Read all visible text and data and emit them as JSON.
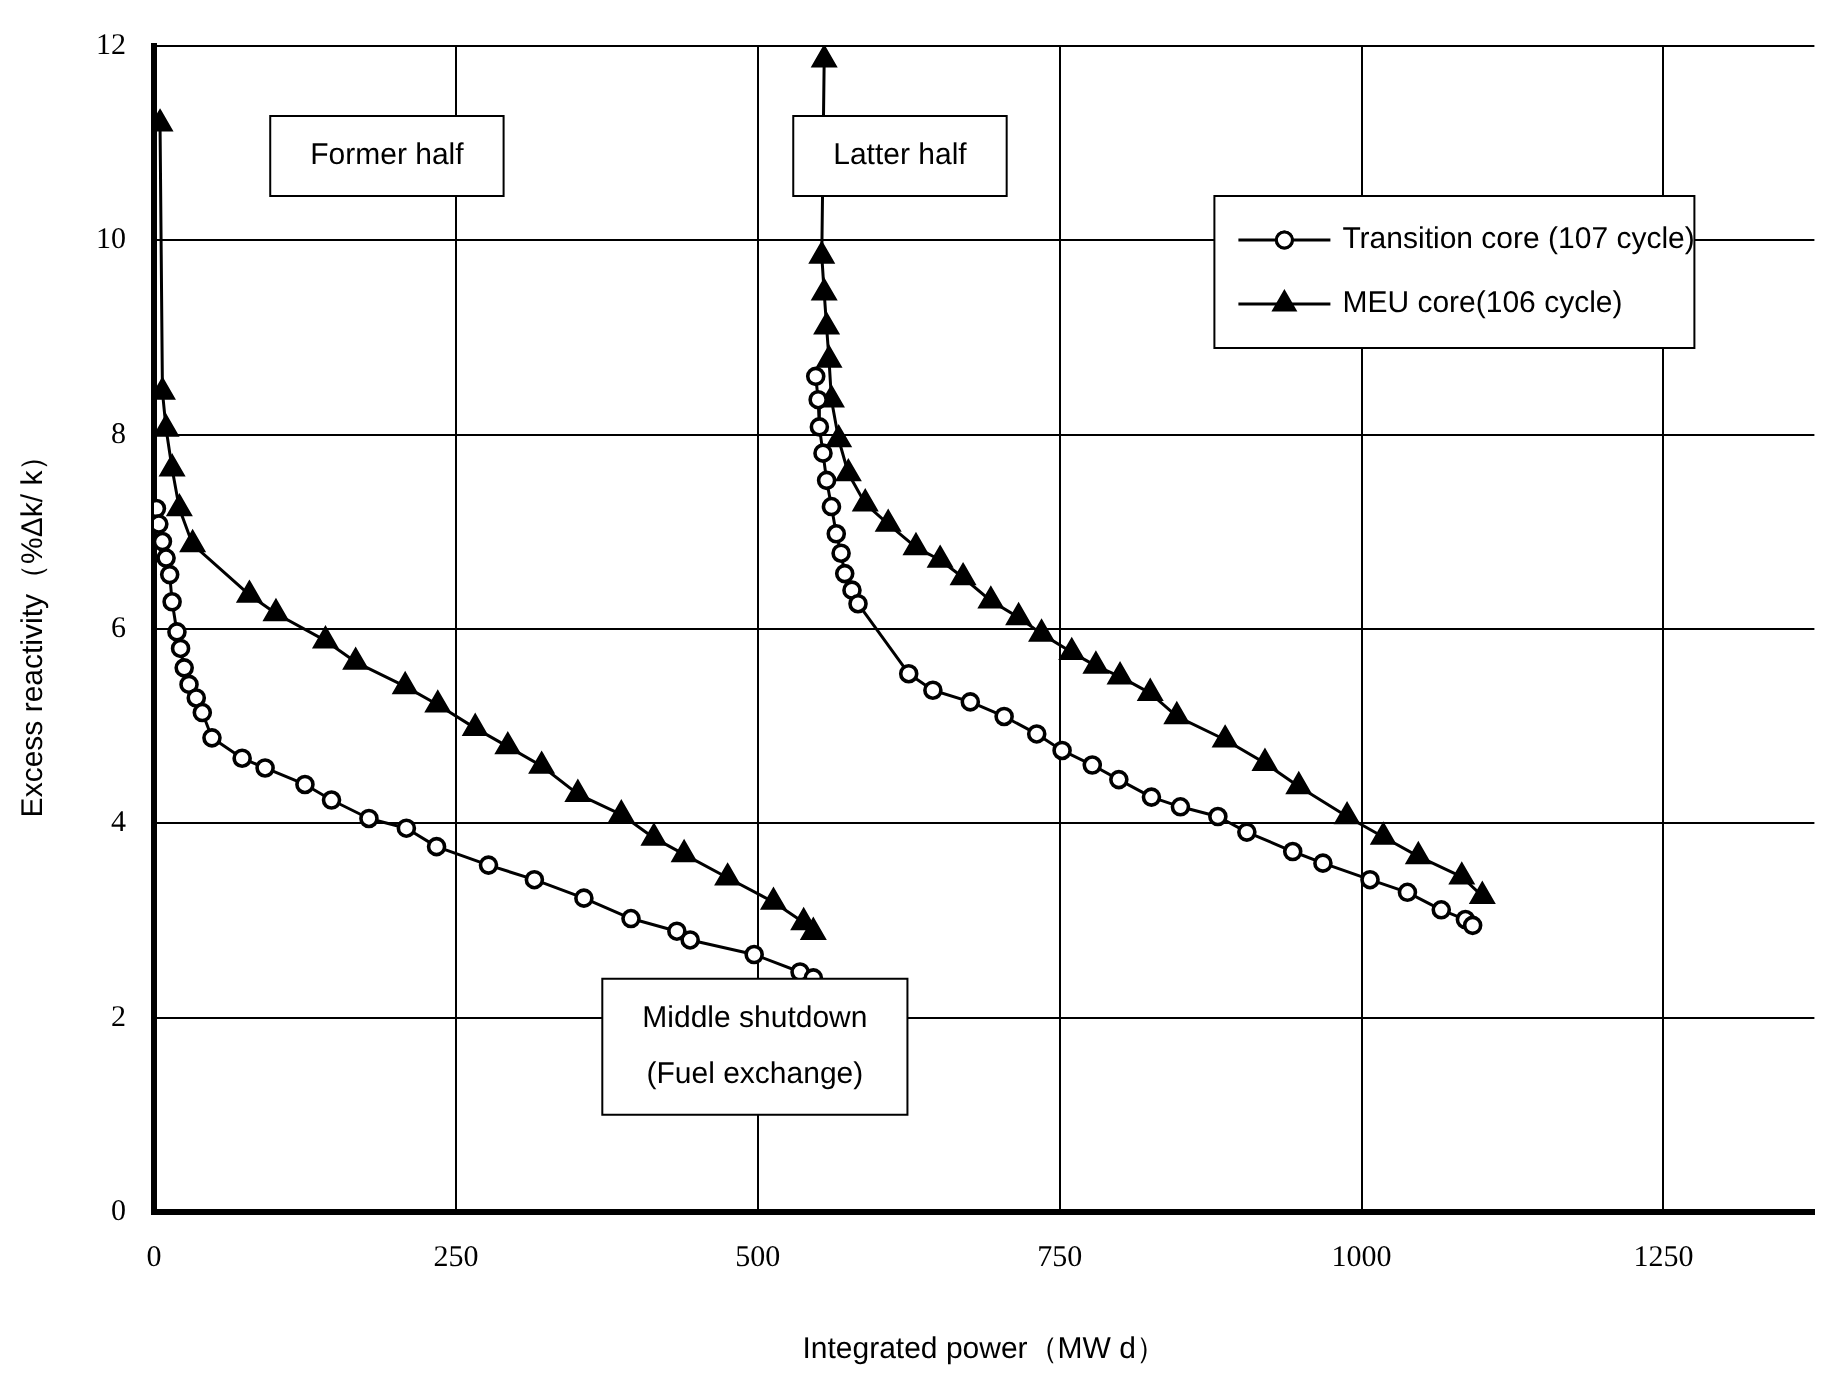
{
  "chart_data": {
    "type": "line",
    "xlabel": "Integrated power（MW d）",
    "ylabel": "Excess reactivity（%Δk/ k）",
    "xlim": [
      0,
      1375
    ],
    "xticks": [
      0,
      250,
      500,
      750,
      1000,
      1250
    ],
    "ylim": [
      0,
      12
    ],
    "yticks": [
      0,
      2,
      4,
      6,
      8,
      10,
      12
    ],
    "grid": true,
    "legend": "top right",
    "line_style": "solid",
    "annotations": [
      "Former half",
      "Latter half",
      "Middle shutdown\n(Fuel exchange)"
    ],
    "series": [
      {
        "name": "Transition core (107 cycle)",
        "color": "#000000",
        "marker": "circle",
        "x": [
          2,
          4,
          7,
          10,
          13,
          15,
          19,
          22,
          25,
          29,
          35,
          40,
          48,
          73,
          92,
          125,
          147,
          178,
          209,
          234,
          277,
          315,
          356,
          395,
          433,
          444,
          497,
          535,
          546,
          null,
          548,
          550,
          551,
          554,
          557,
          561,
          565,
          569,
          572,
          578,
          583,
          625,
          645,
          676,
          704,
          731,
          752,
          777,
          799,
          826,
          850,
          881,
          905,
          943,
          968,
          1007,
          1038,
          1066,
          1086,
          1092
        ],
        "values": [
          7.24,
          7.08,
          6.9,
          6.73,
          6.56,
          6.28,
          5.97,
          5.8,
          5.6,
          5.43,
          5.29,
          5.14,
          4.88,
          4.67,
          4.57,
          4.4,
          4.24,
          4.05,
          3.95,
          3.76,
          3.57,
          3.42,
          3.23,
          3.02,
          2.89,
          2.8,
          2.65,
          2.47,
          2.41,
          null,
          8.6,
          8.36,
          8.08,
          7.81,
          7.53,
          7.26,
          6.98,
          6.78,
          6.57,
          6.4,
          6.26,
          5.54,
          5.37,
          5.25,
          5.1,
          4.92,
          4.75,
          4.6,
          4.45,
          4.27,
          4.17,
          4.07,
          3.91,
          3.71,
          3.59,
          3.42,
          3.29,
          3.11,
          3.01,
          2.95
        ]
      },
      {
        "name": "MEU core(106 cycle)",
        "color": "#000000",
        "marker": "triangle",
        "x": [
          5,
          7,
          10,
          15,
          21,
          32,
          79,
          101,
          142,
          167,
          208,
          235,
          266,
          293,
          321,
          351,
          387,
          414,
          439,
          475,
          513,
          538,
          546,
          null,
          555,
          553,
          555,
          557,
          559,
          561,
          567,
          575,
          589,
          608,
          631,
          651,
          670,
          693,
          716,
          735,
          760,
          780,
          800,
          825,
          847,
          887,
          920,
          948,
          988,
          1018,
          1047,
          1083,
          1100
        ],
        "values": [
          11.2,
          8.44,
          8.06,
          7.65,
          7.24,
          6.87,
          6.35,
          6.16,
          5.88,
          5.66,
          5.41,
          5.22,
          4.98,
          4.79,
          4.59,
          4.3,
          4.09,
          3.85,
          3.68,
          3.44,
          3.19,
          2.98,
          2.88,
          null,
          11.86,
          9.84,
          9.46,
          9.11,
          8.77,
          8.36,
          7.95,
          7.6,
          7.29,
          7.08,
          6.84,
          6.71,
          6.53,
          6.29,
          6.12,
          5.95,
          5.76,
          5.62,
          5.51,
          5.34,
          5.1,
          4.86,
          4.62,
          4.38,
          4.07,
          3.86,
          3.66,
          3.45,
          3.25
        ]
      }
    ]
  }
}
